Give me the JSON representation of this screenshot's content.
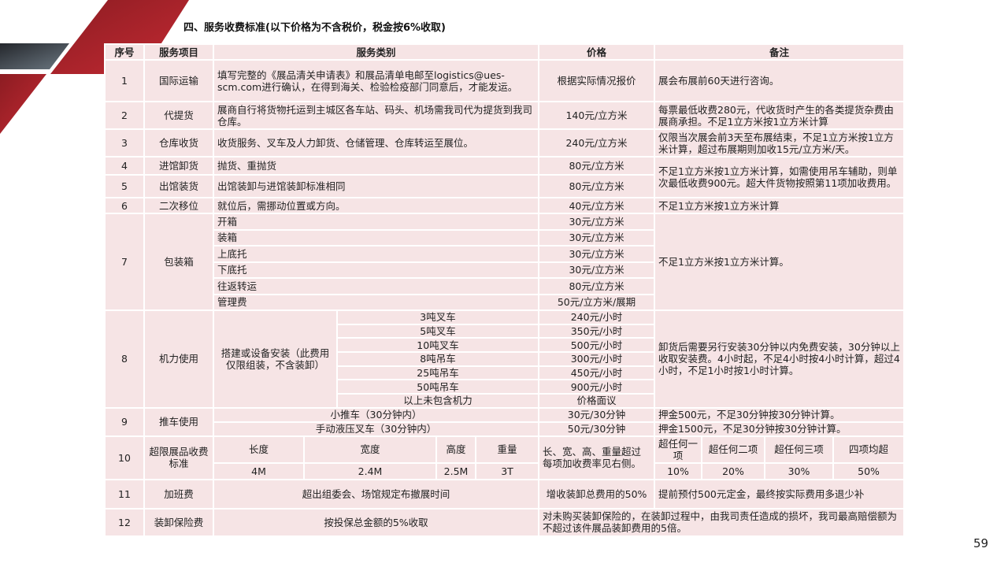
{
  "title": "四、服务收费标准(以下价格为不含税价，税金按6%收取)",
  "page_number": "59",
  "colors": {
    "accent_red": "#b5242d",
    "cell_bg": "#f6e4e5",
    "deco_gray": "#5c6670"
  },
  "header": {
    "no": "序号",
    "item": "服务项目",
    "category": "服务类别",
    "price": "价格",
    "remark": "备注"
  },
  "rows": [
    {
      "no": "1",
      "item": "国际运输",
      "category": "填写完整的《展品清关申请表》和展品清单电邮至logistics@ues-scm.com进行确认，在得到海关、检验检疫部门同意后，才能发运。",
      "price": "根据实际情况报价",
      "remark": "展会布展前60天进行咨询。"
    },
    {
      "no": "2",
      "item": "代提货",
      "category": "展商自行将货物托运到主城区各车站、码头、机场需我司代为提货到我司仓库。",
      "price": "140元/立方米",
      "remark": "每票最低收费280元，代收货时产生的各类提货杂费由展商承担。不足1立方米按1立方米计算"
    },
    {
      "no": "3",
      "item": "仓库收货",
      "category": "收货服务、叉车及人力卸货、仓储管理、仓库转运至展位。",
      "price": "240元/立方米",
      "remark": "仅限当次展会前3天至布展结束，不足1立方米按1立方米计算，超过布展期则加收15元/立方米/天。"
    },
    {
      "no": "4",
      "item": "进馆卸货",
      "category": "抛货、重抛货",
      "price": "80元/立方米",
      "remark": "不足1立方米按1立方米计算，如需使用吊车辅助，则单次最低收费900元。超大件货物按照第11项加收费用。"
    },
    {
      "no": "5",
      "item": "出馆装货",
      "category": "出馆装卸与进馆装卸标准相同",
      "price": "80元/立方米"
    },
    {
      "no": "6",
      "item": "二次移位",
      "category": "就位后，需挪动位置或方向。",
      "price": "40元/立方米",
      "remark": "不足1立方米按1立方米计算"
    },
    {
      "no": "7",
      "item": "包装箱",
      "remark": "不足1立方米按1立方米计算。",
      "subs": [
        {
          "category": "开箱",
          "price": "30元/立方米"
        },
        {
          "category": "装箱",
          "price": "30元/立方米"
        },
        {
          "category": "上底托",
          "price": "30元/立方米"
        },
        {
          "category": "下底托",
          "price": "30元/立方米"
        },
        {
          "category": "往返转运",
          "price": "80元/立方米"
        },
        {
          "category": "管理费",
          "price": "50元/立方米/展期"
        }
      ]
    },
    {
      "no": "8",
      "item": "机力使用",
      "group": "搭建或设备安装（此费用仅限组装，不含装卸）",
      "remark": "卸货后需要另行安装30分钟以内免费安装，30分钟以上收取安装费。4小时起，不足4小时按4小时计算，超过4小时，不足1小时按1小时计算。",
      "subs": [
        {
          "category": "3吨叉车",
          "price": "240元/小时"
        },
        {
          "category": "5吨叉车",
          "price": "350元/小时"
        },
        {
          "category": "10吨叉车",
          "price": "500元/小时"
        },
        {
          "category": "8吨吊车",
          "price": "300元/小时"
        },
        {
          "category": "25吨吊车",
          "price": "450元/小时"
        },
        {
          "category": "50吨吊车",
          "price": "900元/小时"
        },
        {
          "category": "以上未包含机力",
          "price": "价格面议"
        }
      ]
    },
    {
      "no": "9",
      "item": "推车使用",
      "subs": [
        {
          "category": "小推车（30分钟内）",
          "price": "30元/30分钟",
          "remark": "押金500元，不足30分钟按30分钟计算。"
        },
        {
          "category": "手动液压叉车（30分钟内）",
          "price": "50元/30分钟",
          "remark": "押金1500元，不足30分钟按30分钟计算。"
        }
      ]
    },
    {
      "no": "10",
      "item": "超限展品收费标准",
      "dims": [
        {
          "label": "长度",
          "value": "4M"
        },
        {
          "label": "宽度",
          "value": "2.4M"
        },
        {
          "label": "高度",
          "value": "2.5M"
        },
        {
          "label": "重量",
          "value": "3T"
        }
      ],
      "note": "长、宽、高、重量超过每项加收费率见右侧。",
      "rates": [
        {
          "label": "超任何一项",
          "value": "10%"
        },
        {
          "label": "超任何二项",
          "value": "20%"
        },
        {
          "label": "超任何三项",
          "value": "30%"
        },
        {
          "label": "四项均超",
          "value": "50%"
        }
      ]
    },
    {
      "no": "11",
      "item": "加班费",
      "category": "超出组委会、场馆规定布撤展时间",
      "price": "增收装卸总费用的50%",
      "remark": "提前预付500元定金，最终按实际费用多退少补"
    },
    {
      "no": "12",
      "item": "装卸保险费",
      "category": "按投保总金额的5%收取",
      "remark": "对未购买装卸保险的，在装卸过程中，由我司责任造成的损坏，我司最高赔偿额为不超过该件展品装卸费用的5倍。"
    }
  ]
}
